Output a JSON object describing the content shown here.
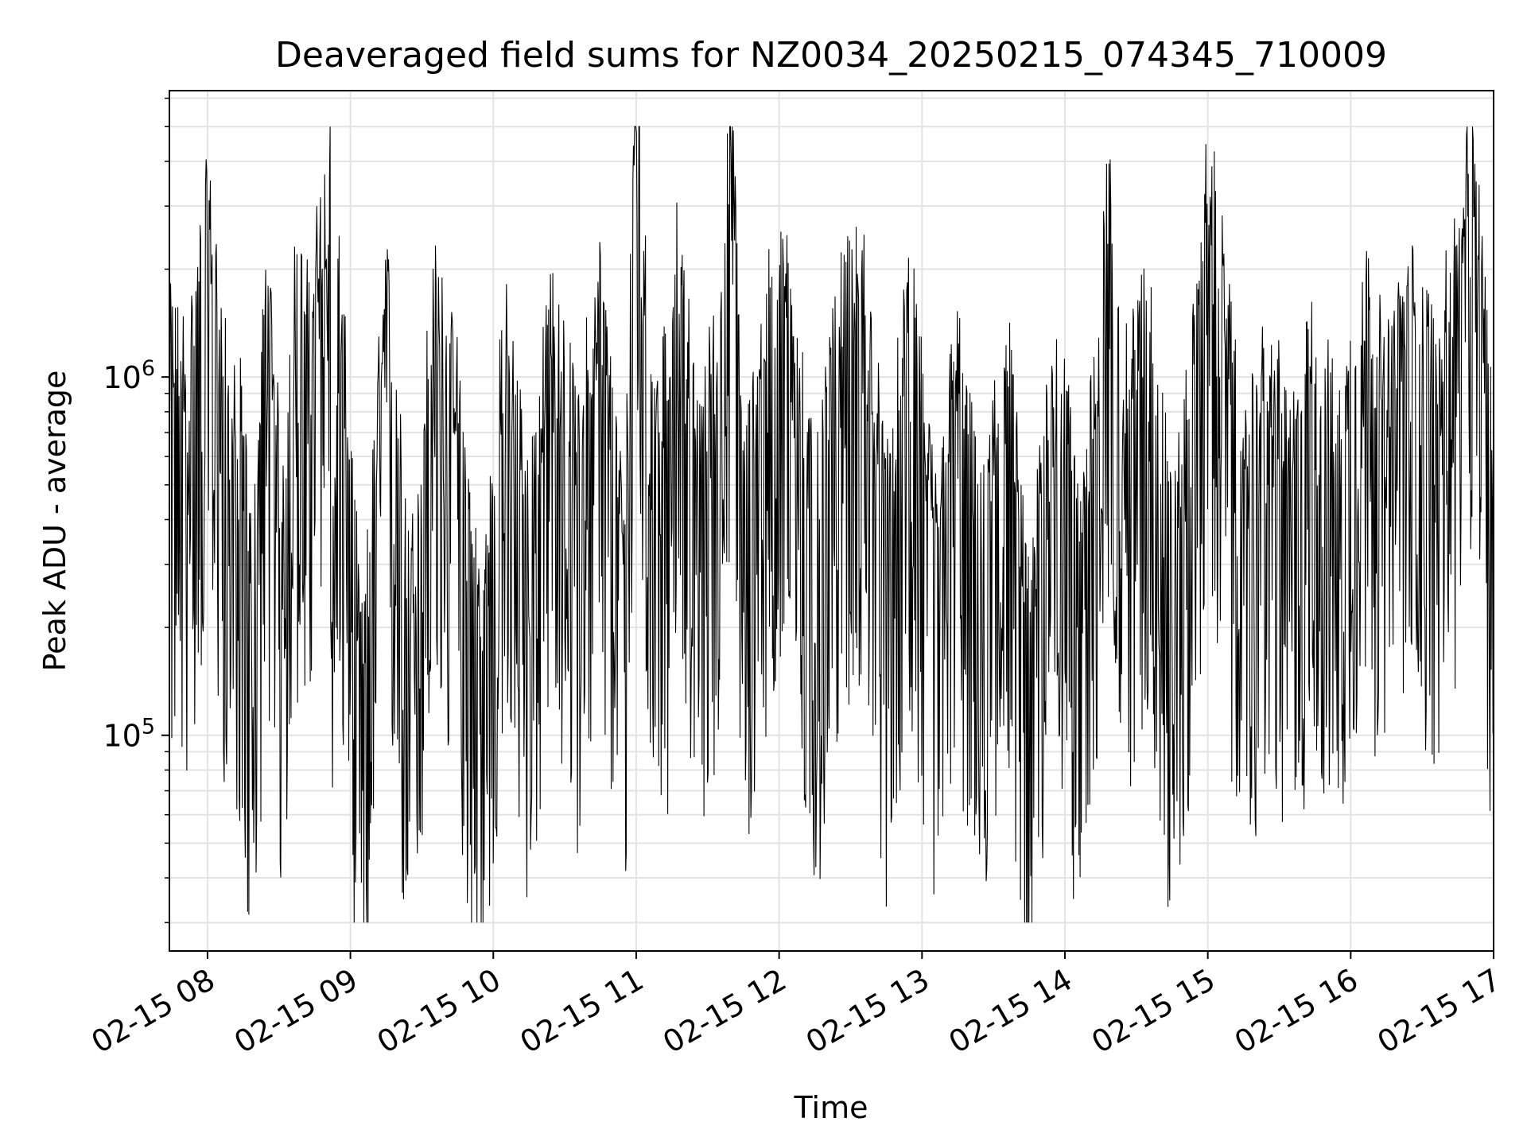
{
  "chart_data": {
    "type": "line",
    "title": "Deaveraged field sums for NZ0034_20250215_074345_710009",
    "xlabel": "Time",
    "ylabel": "Peak ADU - average",
    "x_axis": {
      "kind": "datetime",
      "range": [
        "2025-02-15T07:44",
        "2025-02-15T17:00"
      ],
      "tick_labels": [
        "02-15 08",
        "02-15 09",
        "02-15 10",
        "02-15 11",
        "02-15 12",
        "02-15 13",
        "02-15 14",
        "02-15 15",
        "02-15 16",
        "02-15 17"
      ]
    },
    "y_axis": {
      "scale": "log",
      "range": [
        25000,
        6300000
      ],
      "tick_labels": [
        {
          "base": "10",
          "exponent": "5"
        },
        {
          "base": "10",
          "exponent": "6"
        }
      ]
    },
    "grid": true,
    "line_color": "#000000",
    "series": [
      {
        "x": [
          "2025-02-15T07:44",
          "2025-02-15T07:52",
          "2025-02-15T08:00",
          "2025-02-15T08:03",
          "2025-02-15T08:10",
          "2025-02-15T08:13",
          "2025-02-15T08:19",
          "2025-02-15T08:25",
          "2025-02-15T08:31",
          "2025-02-15T08:37",
          "2025-02-15T08:42",
          "2025-02-15T08:50",
          "2025-02-15T08:51",
          "2025-02-15T08:53",
          "2025-02-15T08:55",
          "2025-02-15T09:05",
          "2025-02-15T09:15",
          "2025-02-15T09:25",
          "2025-02-15T09:35",
          "2025-02-15T09:45",
          "2025-02-15T09:55",
          "2025-02-15T10:05",
          "2025-02-15T10:15",
          "2025-02-15T10:25",
          "2025-02-15T10:35",
          "2025-02-15T10:45",
          "2025-02-15T10:55",
          "2025-02-15T11:00",
          "2025-02-15T11:05",
          "2025-02-15T11:15",
          "2025-02-15T11:18",
          "2025-02-15T11:25",
          "2025-02-15T11:35",
          "2025-02-15T11:40",
          "2025-02-15T11:45",
          "2025-02-15T11:55",
          "2025-02-15T12:05",
          "2025-02-15T12:15",
          "2025-02-15T12:25",
          "2025-02-15T12:35",
          "2025-02-15T12:45",
          "2025-02-15T12:55",
          "2025-02-15T13:05",
          "2025-02-15T13:15",
          "2025-02-15T13:25",
          "2025-02-15T13:35",
          "2025-02-15T13:45",
          "2025-02-15T13:55",
          "2025-02-15T14:05",
          "2025-02-15T14:15",
          "2025-02-15T14:17",
          "2025-02-15T14:20",
          "2025-02-15T14:25",
          "2025-02-15T14:35",
          "2025-02-15T14:45",
          "2025-02-15T14:55",
          "2025-02-15T15:00",
          "2025-02-15T15:05",
          "2025-02-15T15:15",
          "2025-02-15T15:25",
          "2025-02-15T15:35",
          "2025-02-15T15:45",
          "2025-02-15T15:55",
          "2025-02-15T16:05",
          "2025-02-15T16:15",
          "2025-02-15T16:25",
          "2025-02-15T16:35",
          "2025-02-15T16:45",
          "2025-02-15T16:50",
          "2025-02-15T16:53",
          "2025-02-15T16:56",
          "2025-02-15T17:00"
        ],
        "y": [
          550000,
          480000,
          1300000,
          900000,
          300000,
          400000,
          120000,
          900000,
          200000,
          800000,
          650000,
          1400000,
          3600000,
          150000,
          900000,
          70000,
          850000,
          110000,
          750000,
          400000,
          90000,
          600000,
          200000,
          700000,
          300000,
          800000,
          150000,
          4800000,
          500000,
          380000,
          1500000,
          280000,
          600000,
          2400000,
          220000,
          700000,
          850000,
          180000,
          650000,
          900000,
          210000,
          750000,
          190000,
          520000,
          160000,
          650000,
          90000,
          560000,
          200000,
          430000,
          1500000,
          1300000,
          400000,
          750000,
          160000,
          550000,
          1800000,
          1000000,
          230000,
          500000,
          280000,
          550000,
          300000,
          800000,
          430000,
          750000,
          500000,
          900000,
          1900000,
          1500000,
          900000,
          200000
        ]
      }
    ]
  }
}
